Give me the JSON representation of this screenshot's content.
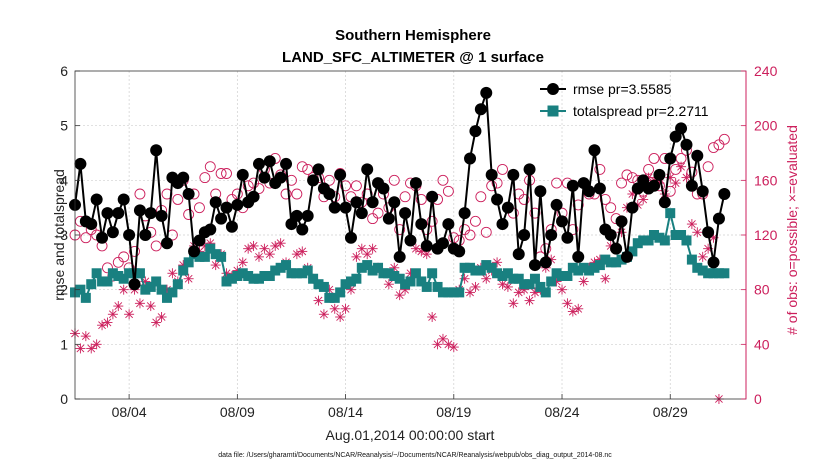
{
  "chart_data": {
    "type": "line",
    "title": "Southern Hemisphere",
    "subtitle": "LAND_SFC_ALTIMETER @ 1 surface",
    "xlabel": "Aug.01,2014 00:00:00 start",
    "ylabel": "rmse and totalspread",
    "ylabel_right": "# of obs: o=possible; ×=evaluated",
    "footnote": "data file: /Users/gharamti/Documents/NCAR/Reanalysis/~/Documents/NCAR/Reanalysis/webpub/obs_diag_output_2014-08.nc",
    "xlim": [
      1.5,
      32.5
    ],
    "ylim": [
      0,
      6
    ],
    "ylim_right": [
      0,
      240
    ],
    "x_ticks": [
      4,
      9,
      14,
      19,
      24,
      29
    ],
    "x_tick_labels": [
      "08/04",
      "08/09",
      "08/14",
      "08/19",
      "08/24",
      "08/29"
    ],
    "y_ticks": [
      0,
      1,
      2,
      3,
      4,
      5,
      6
    ],
    "y_ticks_right": [
      0,
      40,
      80,
      120,
      160,
      200,
      240
    ],
    "grid": true,
    "legend_position": "top-right",
    "colors": {
      "rmse": "#000000",
      "totalspread": "#198080",
      "obs": "#cc1f5c"
    },
    "series": [
      {
        "name": "rmse pr=3.5585",
        "axis": "left",
        "marker": "circle",
        "x_start": 1.5,
        "x_step": 0.25,
        "values": [
          3.55,
          4.3,
          3.25,
          3.2,
          3.65,
          2.95,
          3.4,
          3.05,
          3.4,
          3.65,
          3.0,
          2.1,
          3.45,
          3.0,
          3.4,
          4.55,
          3.35,
          2.85,
          4.05,
          3.95,
          4.05,
          3.75,
          2.7,
          2.9,
          3.05,
          3.1,
          3.6,
          3.3,
          3.5,
          3.15,
          3.55,
          4.1,
          3.6,
          3.7,
          4.3,
          4.05,
          4.35,
          3.95,
          4.05,
          4.3,
          3.2,
          3.35,
          3.1,
          3.35,
          4.0,
          4.2,
          3.85,
          3.75,
          3.5,
          4.1,
          3.5,
          2.95,
          3.6,
          3.4,
          4.2,
          3.6,
          3.95,
          3.85,
          3.3,
          3.6,
          2.6,
          3.4,
          2.9,
          3.95,
          3.2,
          2.8,
          3.7,
          2.75,
          2.85,
          3.2,
          2.75,
          2.7,
          3.4,
          4.4,
          4.9,
          5.3,
          5.6,
          4.1,
          3.65,
          3.2,
          3.5,
          4.1,
          2.65,
          3.0,
          4.2,
          2.45,
          3.8,
          2.5,
          3.0,
          3.55,
          3.25,
          2.95,
          3.9,
          2.6,
          3.95,
          3.8,
          4.55,
          3.85,
          3.1,
          3.0,
          2.75,
          3.25,
          2.6,
          3.5,
          3.85,
          4.0,
          3.85,
          3.9,
          4.1,
          3.6,
          4.4,
          4.8,
          4.95,
          4.65,
          3.9,
          4.45,
          3.8,
          3.05,
          2.5,
          3.3,
          3.75
        ]
      },
      {
        "name": "totalspread pr=2.2711",
        "axis": "left",
        "marker": "square",
        "x_start": 1.5,
        "x_step": 0.25,
        "values": [
          1.95,
          2.0,
          1.85,
          2.1,
          2.3,
          2.15,
          2.15,
          2.3,
          2.25,
          2.2,
          2.3,
          2.3,
          2.3,
          2.0,
          2.05,
          2.15,
          2.0,
          1.85,
          1.95,
          2.1,
          2.35,
          2.5,
          2.65,
          2.6,
          2.6,
          2.75,
          2.65,
          2.6,
          2.15,
          2.2,
          2.25,
          2.3,
          2.25,
          2.2,
          2.2,
          2.25,
          2.25,
          2.35,
          2.4,
          2.45,
          2.3,
          2.3,
          2.3,
          2.35,
          2.2,
          2.1,
          2.05,
          1.85,
          1.85,
          1.95,
          2.1,
          2.15,
          2.2,
          2.4,
          2.45,
          2.35,
          2.4,
          2.3,
          2.3,
          2.25,
          2.2,
          2.1,
          2.15,
          2.3,
          2.15,
          2.05,
          2.3,
          2.05,
          1.95,
          1.95,
          1.95,
          1.95,
          2.4,
          2.4,
          2.35,
          2.35,
          2.45,
          2.4,
          2.3,
          2.25,
          2.3,
          2.2,
          2.2,
          2.1,
          2.1,
          2.2,
          2.05,
          1.95,
          2.15,
          2.3,
          2.25,
          2.25,
          2.4,
          2.35,
          2.4,
          2.35,
          2.4,
          2.45,
          2.55,
          2.5,
          2.5,
          2.55,
          2.6,
          2.7,
          2.85,
          2.9,
          2.9,
          3.0,
          2.95,
          2.9,
          3.4,
          3.0,
          3.0,
          2.9,
          2.55,
          2.4,
          2.35,
          2.3,
          2.3,
          2.3,
          2.3
        ]
      },
      {
        "name": "possible obs",
        "axis": "right",
        "marker": "open-circle",
        "x_start": 1.5,
        "x_step": 0.25,
        "values": [
          120,
          130,
          118,
          124,
          120,
          112,
          96,
          90,
          100,
          104,
          96,
          108,
          150,
          134,
          122,
          112,
          138,
          150,
          120,
          146,
          160,
          135,
          150,
          140,
          162,
          170,
          150,
          165,
          165,
          146,
          150,
          140,
          156,
          158,
          154,
          168,
          158,
          176,
          164,
          150,
          160,
          150,
          170,
          168,
          162,
          162,
          148,
          160,
          148,
          165,
          156,
          148,
          156,
          144,
          150,
          132,
          136,
          150,
          140,
          160,
          124,
          148,
          158,
          156,
          146,
          124,
          130,
          146,
          160,
          152,
          118,
          116,
          124,
          120,
          130,
          148,
          122,
          156,
          158,
          168,
          140,
          136,
          150,
          146,
          160,
          136,
          104,
          110,
          124,
          158,
          136,
          158,
          124,
          142,
          158,
          150,
          150,
          168,
          146,
          140,
          132,
          158,
          164,
          162,
          160,
          152,
          168,
          176,
          156,
          176,
          152,
          168,
          176,
          182,
          166,
          150,
          150,
          170,
          184,
          186,
          190
        ]
      },
      {
        "name": "evaluated obs",
        "axis": "right",
        "marker": "asterisk",
        "x_start": 1.5,
        "x_step": 0.25,
        "values": [
          48,
          37,
          46,
          37,
          40,
          54,
          56,
          62,
          68,
          80,
          62,
          80,
          70,
          86,
          68,
          56,
          60,
          80,
          92,
          86,
          98,
          88,
          112,
          108,
          112,
          114,
          98,
          106,
          92,
          90,
          94,
          100,
          110,
          112,
          104,
          110,
          106,
          112,
          114,
          100,
          92,
          106,
          108,
          96,
          88,
          72,
          62,
          80,
          66,
          60,
          66,
          80,
          104,
          110,
          106,
          110,
          96,
          92,
          84,
          96,
          76,
          80,
          92,
          110,
          108,
          106,
          60,
          40,
          44,
          40,
          38,
          80,
          88,
          78,
          82,
          96,
          88,
          94,
          100,
          84,
          82,
          70,
          78,
          80,
          72,
          78,
          80,
          96,
          102,
          86,
          80,
          70,
          64,
          66,
          86,
          96,
          100,
          102,
          88,
          112,
          100,
          122,
          140,
          150,
          142,
          146,
          162,
          160,
          158,
          150,
          162,
          158,
          170,
          162,
          128,
          122,
          104,
          110,
          118,
          0
        ]
      }
    ]
  }
}
